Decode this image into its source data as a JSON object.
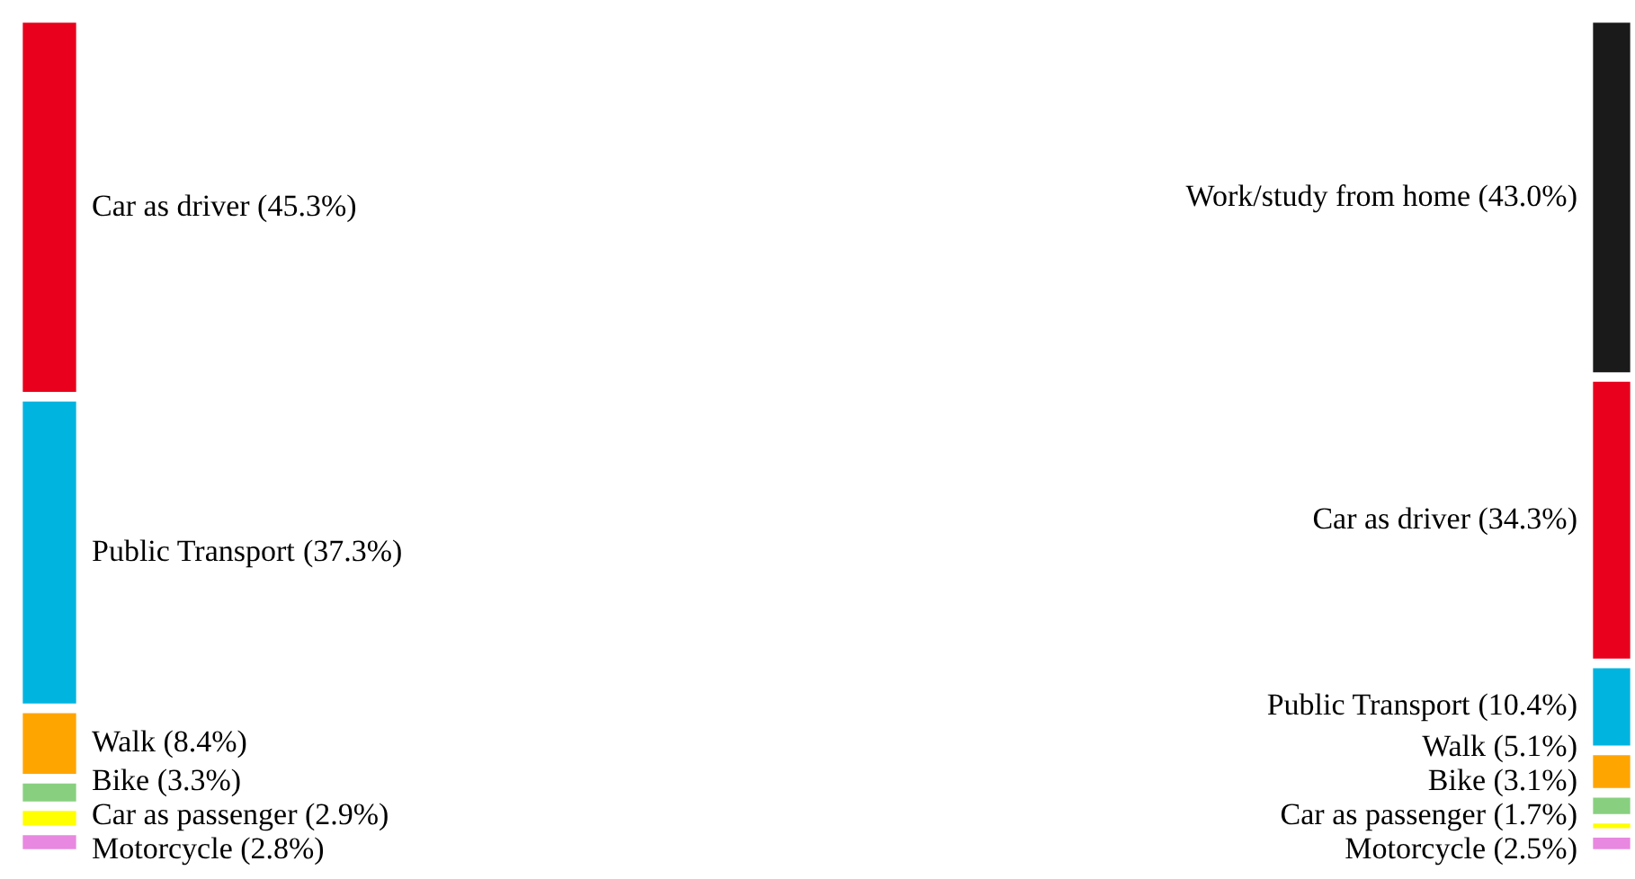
{
  "chart_data": [
    {
      "type": "other",
      "categories": [
        "Car as driver",
        "Public Transport",
        "Walk",
        "Bike",
        "Car as passenger",
        "Motorcycle"
      ],
      "values": [
        45.3,
        37.3,
        8.4,
        3.3,
        2.9,
        2.8
      ],
      "value_labels": [
        "(45.3%)",
        "(37.3%)",
        "(8.4%)",
        "(3.3%)",
        "(2.9%)",
        "(2.8%)"
      ],
      "colors": [
        "#e8001c",
        "#00b4e0",
        "#ffa500",
        "#88d080",
        "#ffff00",
        "#e888e0"
      ]
    },
    {
      "type": "other",
      "categories": [
        "Work/study from home",
        "Car as driver",
        "Public Transport",
        "Walk",
        "Bike",
        "Car as passenger",
        "Motorcycle"
      ],
      "values": [
        43.0,
        34.3,
        10.4,
        5.1,
        3.1,
        1.7,
        2.5
      ],
      "value_labels": [
        "(43.0%)",
        "(34.3%)",
        "(10.4%)",
        "(5.1%)",
        "(3.1%)",
        "(1.7%)",
        "(2.5%)"
      ],
      "colors": [
        "#1a1a1a",
        "#e8001c",
        "#00b4e0",
        "#ffa500",
        "#88d080",
        "#ffff00",
        "#e888e0"
      ]
    }
  ]
}
